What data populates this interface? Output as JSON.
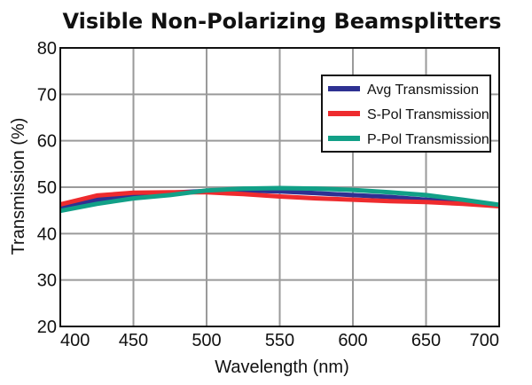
{
  "chart_data": {
    "type": "line",
    "title": "Visible Non-Polarizing Beamsplitters",
    "xlabel": "Wavelength (nm)",
    "ylabel": "Transmission (%)",
    "xlim": [
      400,
      700
    ],
    "ylim": [
      20,
      80
    ],
    "xticks": [
      400,
      450,
      500,
      550,
      600,
      650,
      700
    ],
    "yticks": [
      20,
      30,
      40,
      50,
      60,
      70,
      80
    ],
    "grid": true,
    "legend_position": "top-right",
    "x": [
      400,
      425,
      450,
      475,
      500,
      525,
      550,
      575,
      600,
      625,
      650,
      675,
      700
    ],
    "series": [
      {
        "name": "Avg Transmission",
        "color": "#2e3192",
        "values": [
          45.5,
          47.3,
          48.3,
          48.8,
          49.2,
          49.3,
          49.1,
          48.7,
          48.3,
          47.9,
          47.3,
          46.8,
          46.0
        ]
      },
      {
        "name": "S-Pol Transmission",
        "color": "#ee2b2e",
        "values": [
          46.3,
          48.2,
          48.8,
          48.9,
          48.9,
          48.5,
          48.0,
          47.6,
          47.3,
          47.0,
          46.8,
          46.4,
          45.9
        ]
      },
      {
        "name": "P-Pol Transmission",
        "color": "#12a087",
        "values": [
          44.9,
          46.4,
          47.6,
          48.3,
          49.3,
          49.7,
          49.8,
          49.7,
          49.4,
          48.9,
          48.3,
          47.3,
          46.2
        ]
      }
    ]
  }
}
